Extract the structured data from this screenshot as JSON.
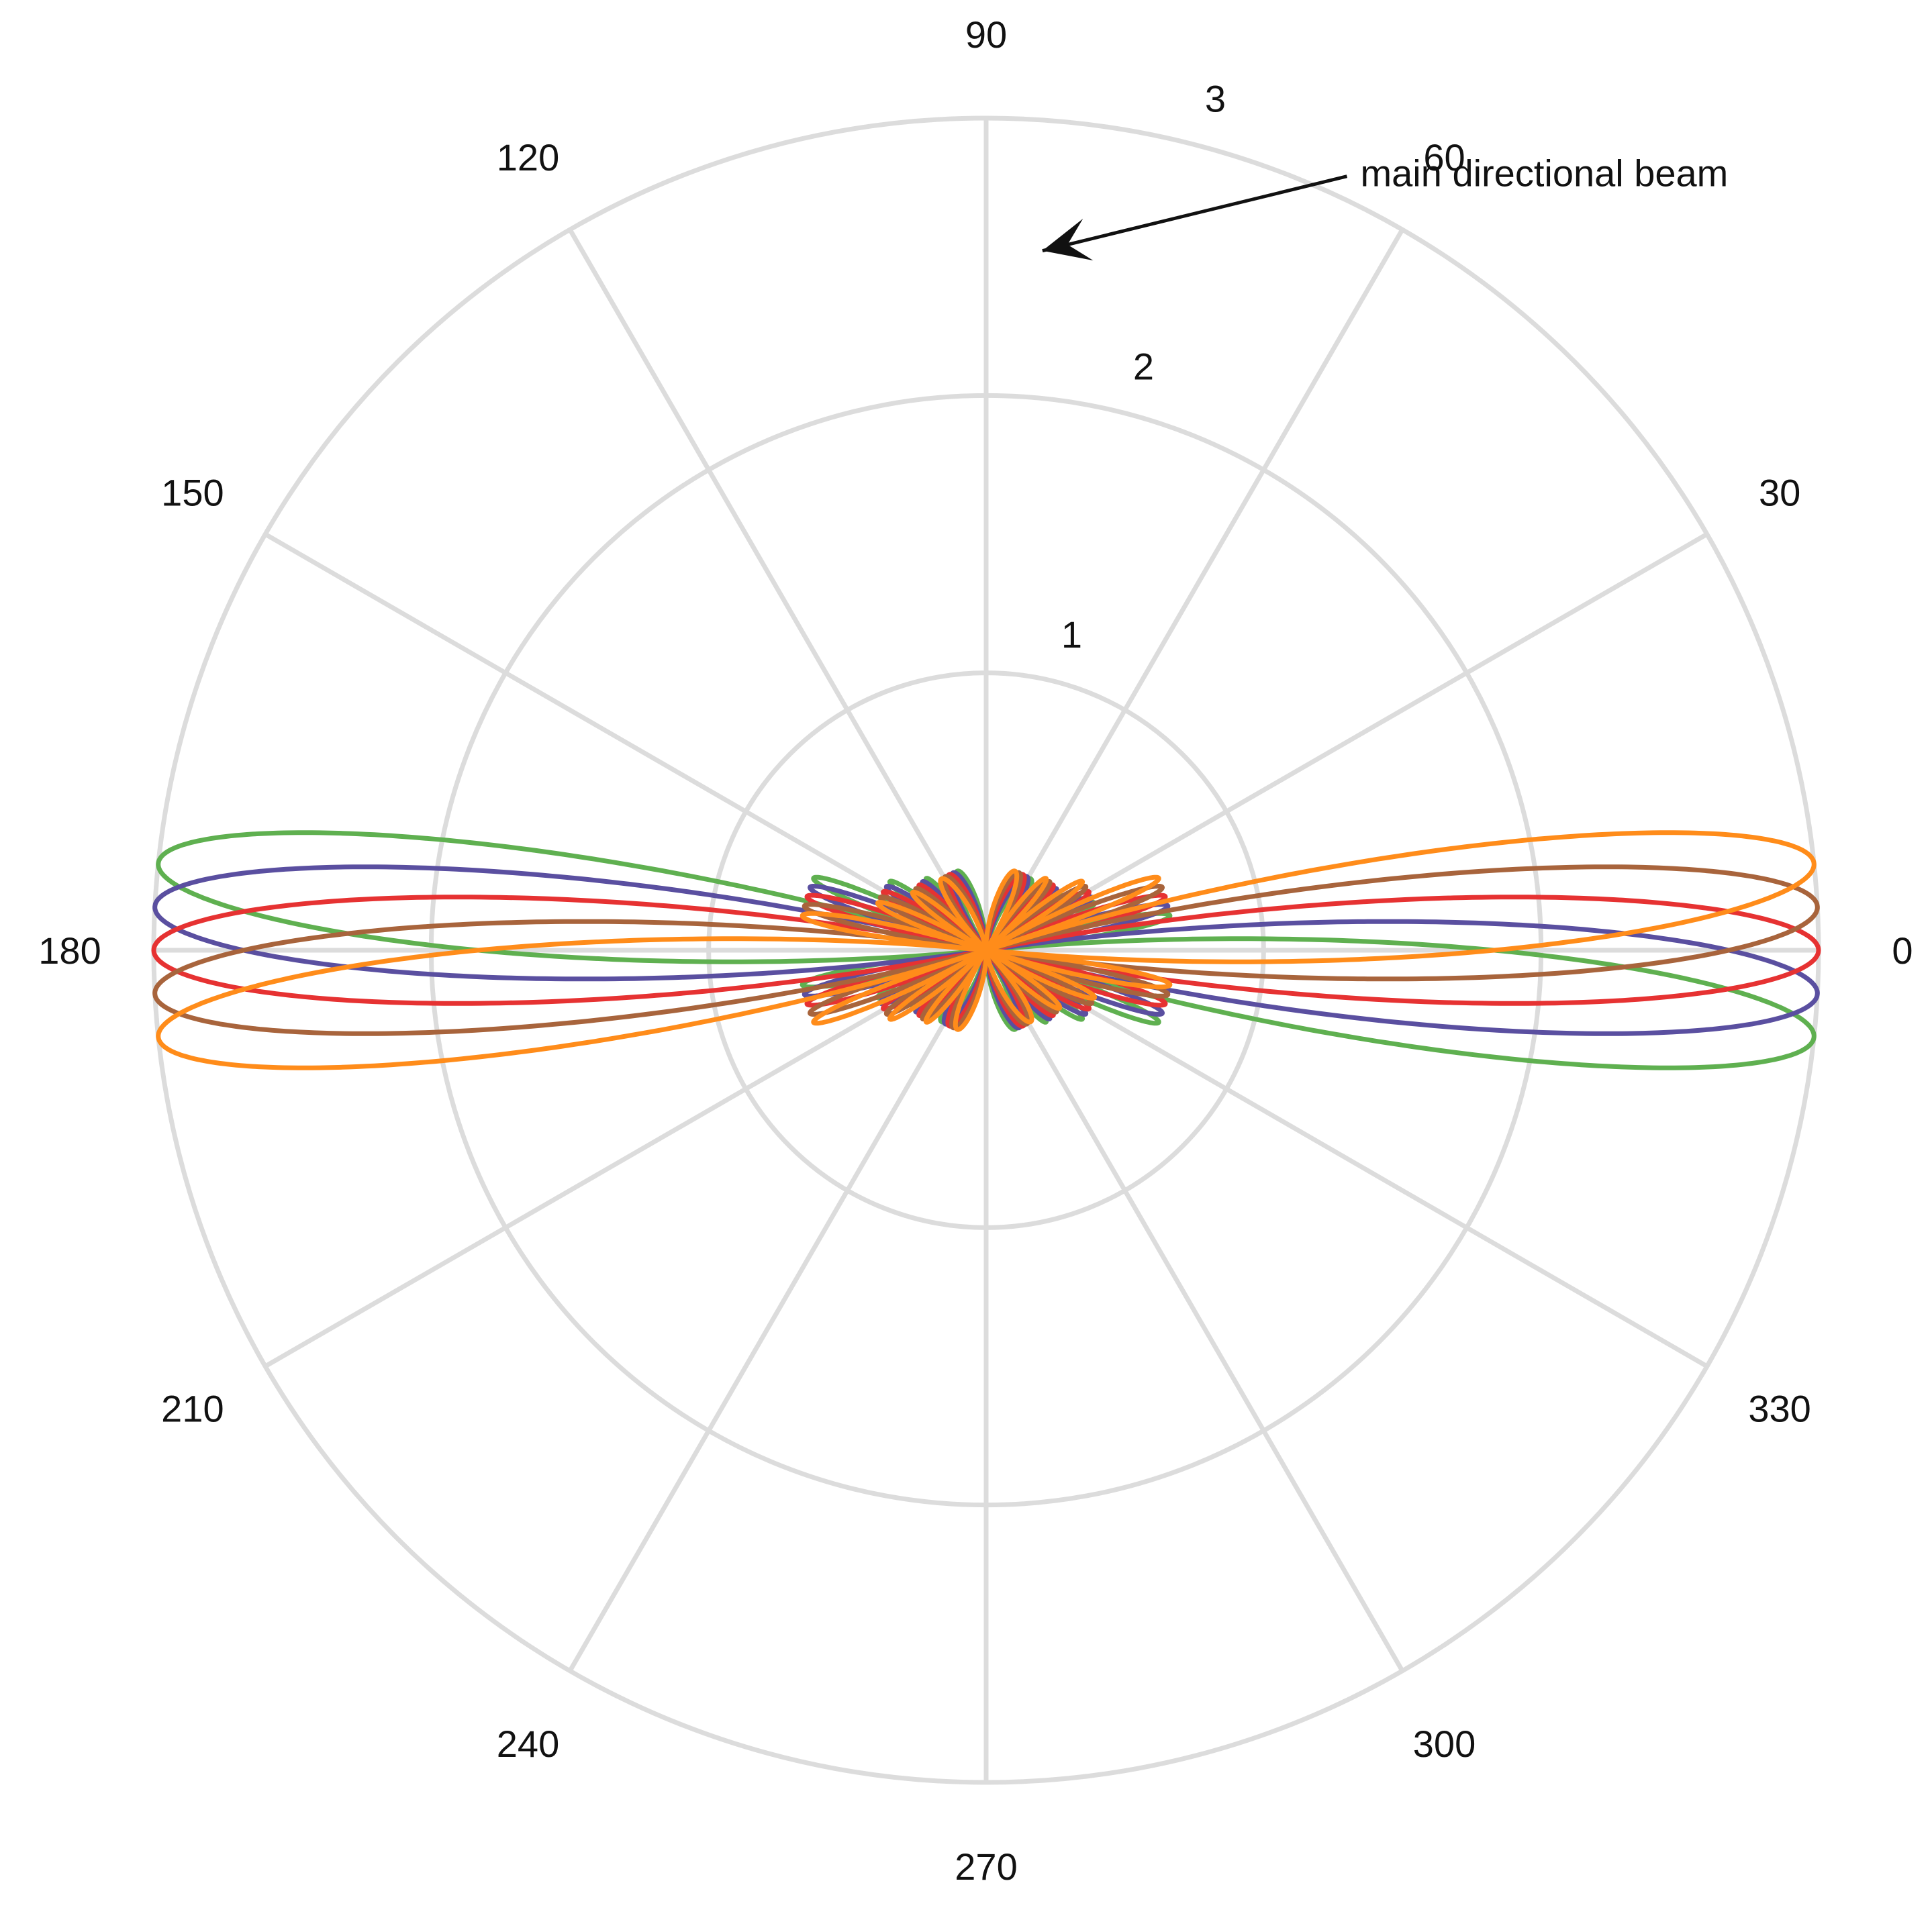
{
  "chart_data": {
    "type": "line",
    "subtype": "polar",
    "title": "",
    "angular_axis": {
      "unit": "degrees",
      "direction": "counterclockwise",
      "zero_at": "right",
      "tick_values": [
        0,
        30,
        60,
        90,
        120,
        150,
        180,
        210,
        240,
        270,
        300,
        330
      ],
      "tick_labels": [
        "0",
        "30",
        "60",
        "90",
        "120",
        "150",
        "180",
        "210",
        "240",
        "270",
        "300",
        "330"
      ]
    },
    "radial_axis": {
      "range": [
        0,
        3
      ],
      "tick_values": [
        1,
        2,
        3
      ],
      "tick_labels": [
        "1",
        "2",
        "3"
      ],
      "label_angle_deg": 75
    },
    "grid": true,
    "grid_color": "#dcdcdc",
    "legend": "none",
    "series_model": "directional beam pattern: r = 3 * |sin(N*u/2) / (N*sin(u/2))|, u = pi*cos(theta - steer)",
    "series": [
      {
        "steer_deg": 84,
        "elements": 10,
        "peak_r": 3,
        "color": "#5fb050"
      },
      {
        "steer_deg": 87,
        "elements": 10,
        "peak_r": 3,
        "color": "#5a4fa0"
      },
      {
        "steer_deg": 90,
        "elements": 10,
        "peak_r": 3,
        "color": "#e63232"
      },
      {
        "steer_deg": 93,
        "elements": 10,
        "peak_r": 3,
        "color": "#a8643c"
      },
      {
        "steer_deg": 96,
        "elements": 10,
        "peak_r": 3,
        "color": "#ff8c1a"
      }
    ],
    "annotation": {
      "text": "main directional beam",
      "arrow_tip": {
        "theta_deg": 85.4,
        "r": 2.53
      },
      "text_anchor": {
        "theta_deg": 64.3,
        "r": 3.11
      }
    }
  }
}
